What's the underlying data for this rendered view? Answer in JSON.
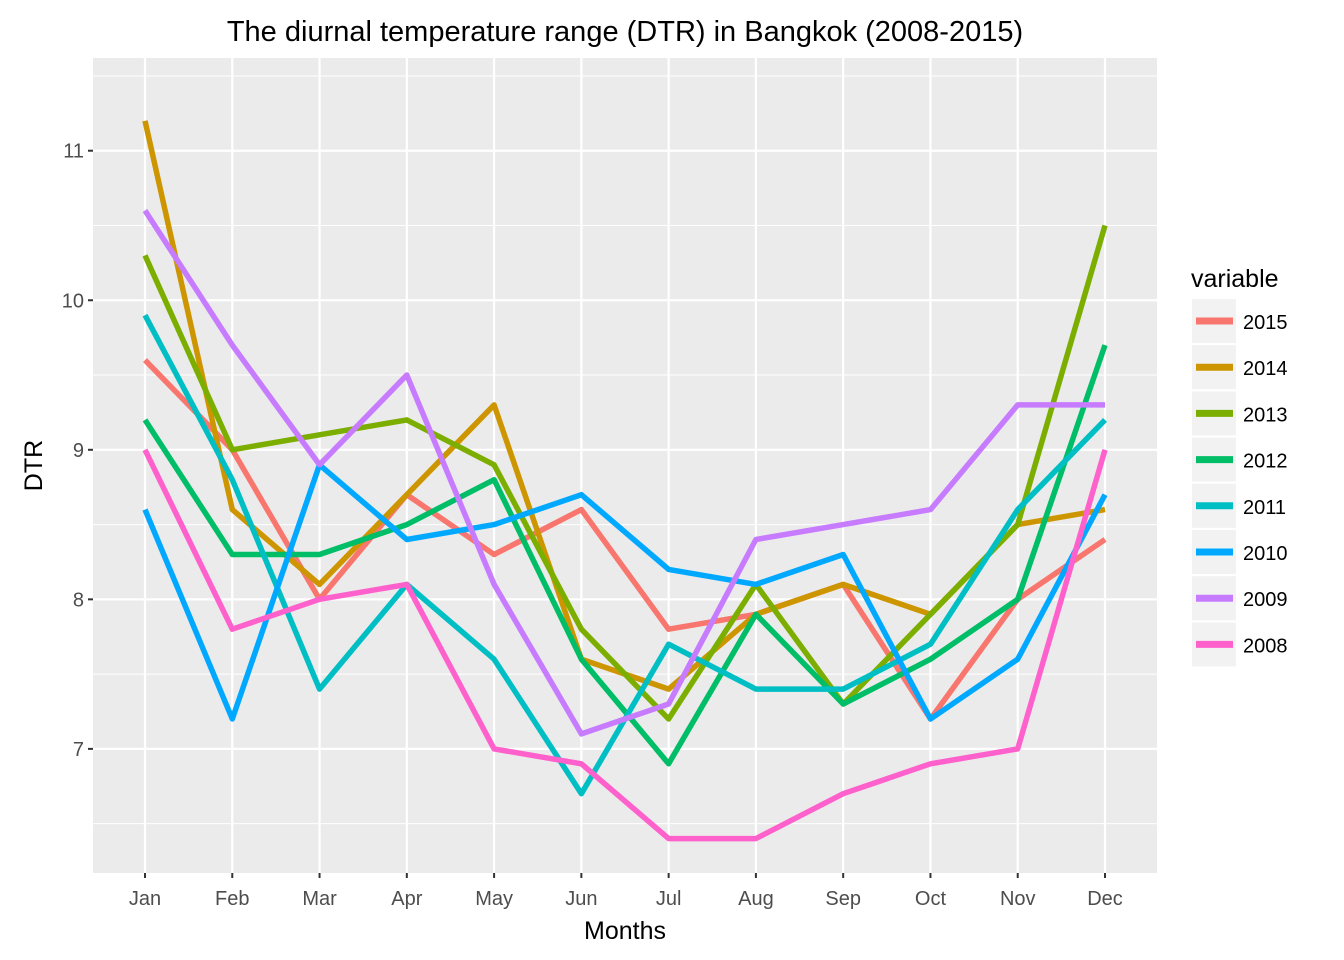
{
  "chart_data": {
    "type": "line",
    "title": "The diurnal temperature range (DTR) in Bangkok (2008-2015)",
    "xlabel": "Months",
    "ylabel": "DTR",
    "categories": [
      "Jan",
      "Feb",
      "Mar",
      "Apr",
      "May",
      "Jun",
      "Jul",
      "Aug",
      "Sep",
      "Oct",
      "Nov",
      "Dec"
    ],
    "yticks": [
      7,
      8,
      9,
      10,
      11
    ],
    "ylim": [
      6.17,
      11.62
    ],
    "grid": true,
    "legend": {
      "title": "variable",
      "position": "right"
    },
    "series": [
      {
        "name": "2015",
        "color": "#F8766D",
        "values": [
          9.6,
          9.0,
          8.0,
          8.7,
          8.3,
          8.6,
          7.8,
          7.9,
          8.1,
          7.2,
          8.0,
          8.4
        ]
      },
      {
        "name": "2014",
        "color": "#CD9600",
        "values": [
          11.2,
          8.6,
          8.1,
          8.7,
          9.3,
          7.6,
          7.4,
          7.9,
          8.1,
          7.9,
          8.5,
          8.6
        ]
      },
      {
        "name": "2013",
        "color": "#7CAE00",
        "values": [
          10.3,
          9.0,
          9.1,
          9.2,
          8.9,
          7.8,
          7.2,
          8.1,
          7.3,
          7.9,
          8.5,
          10.5
        ]
      },
      {
        "name": "2012",
        "color": "#00BE67",
        "values": [
          9.2,
          8.3,
          8.3,
          8.5,
          8.8,
          7.6,
          6.9,
          7.9,
          7.3,
          7.6,
          8.0,
          9.7
        ]
      },
      {
        "name": "2011",
        "color": "#00BFC4",
        "values": [
          9.9,
          8.8,
          7.4,
          8.1,
          7.6,
          6.7,
          7.7,
          7.4,
          7.4,
          7.7,
          8.6,
          9.2
        ]
      },
      {
        "name": "2010",
        "color": "#00A9FF",
        "values": [
          8.6,
          7.2,
          8.9,
          8.4,
          8.5,
          8.7,
          8.2,
          8.1,
          8.3,
          7.2,
          7.6,
          8.7
        ]
      },
      {
        "name": "2009",
        "color": "#C77CFF",
        "values": [
          10.6,
          9.7,
          8.9,
          9.5,
          8.1,
          7.1,
          7.3,
          8.4,
          8.5,
          8.6,
          9.3,
          9.3
        ]
      },
      {
        "name": "2008",
        "color": "#FF61CC",
        "values": [
          9.0,
          7.8,
          8.0,
          8.1,
          7.0,
          6.9,
          6.4,
          6.4,
          6.7,
          6.9,
          7.0,
          9.0
        ]
      }
    ]
  }
}
